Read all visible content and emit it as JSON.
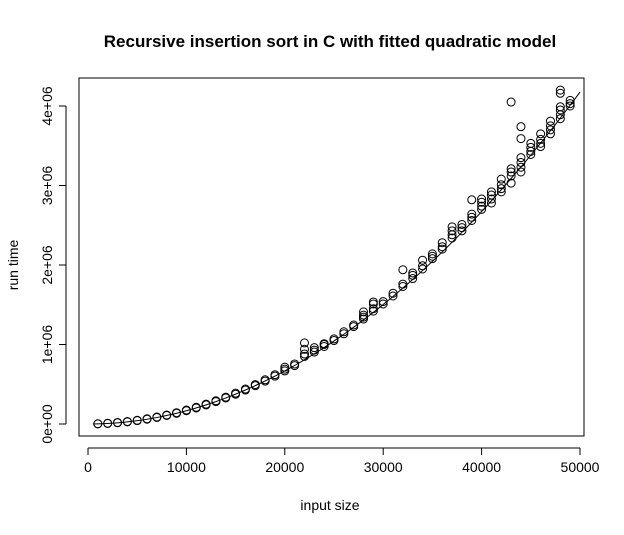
{
  "chart_data": {
    "type": "scatter",
    "title": "Recursive insertion sort in C with fitted quadratic model",
    "xlabel": "input size",
    "ylabel": "run time",
    "xlim": [
      0,
      50000
    ],
    "ylim": [
      0,
      4000000
    ],
    "x_ticks": [
      0,
      10000,
      20000,
      30000,
      40000,
      50000
    ],
    "x_tick_labels": [
      "0",
      "10000",
      "20000",
      "30000",
      "40000",
      "50000"
    ],
    "y_ticks": [
      0,
      1000000,
      2000000,
      3000000,
      4000000
    ],
    "y_tick_labels": [
      "0e+00",
      "1e+06",
      "2e+06",
      "3e+06",
      "4e+06"
    ],
    "grid": false,
    "legend": "none",
    "fit": {
      "type": "quadratic",
      "coef_x2": 0.00167,
      "x_range": [
        500,
        50000
      ]
    },
    "points": [
      {
        "x": 1000,
        "y": 1700
      },
      {
        "x": 1000,
        "y": 3000
      },
      {
        "x": 2000,
        "y": 7000
      },
      {
        "x": 2000,
        "y": 9000
      },
      {
        "x": 3000,
        "y": 15000
      },
      {
        "x": 3000,
        "y": 19000
      },
      {
        "x": 4000,
        "y": 27000
      },
      {
        "x": 4000,
        "y": 31000
      },
      {
        "x": 5000,
        "y": 42000
      },
      {
        "x": 5000,
        "y": 47000
      },
      {
        "x": 6000,
        "y": 60000
      },
      {
        "x": 6000,
        "y": 66000
      },
      {
        "x": 7000,
        "y": 82000
      },
      {
        "x": 7000,
        "y": 88000
      },
      {
        "x": 8000,
        "y": 107000
      },
      {
        "x": 8000,
        "y": 113000
      },
      {
        "x": 9000,
        "y": 135000
      },
      {
        "x": 9000,
        "y": 142000
      },
      {
        "x": 10000,
        "y": 167000
      },
      {
        "x": 10000,
        "y": 176000
      },
      {
        "x": 11000,
        "y": 202000
      },
      {
        "x": 11000,
        "y": 210000
      },
      {
        "x": 12000,
        "y": 240000
      },
      {
        "x": 12000,
        "y": 250000
      },
      {
        "x": 13000,
        "y": 282000
      },
      {
        "x": 13000,
        "y": 292000
      },
      {
        "x": 14000,
        "y": 327000
      },
      {
        "x": 14000,
        "y": 338000
      },
      {
        "x": 15000,
        "y": 375000
      },
      {
        "x": 15000,
        "y": 388000
      },
      {
        "x": 16000,
        "y": 427000
      },
      {
        "x": 16000,
        "y": 440000
      },
      {
        "x": 17000,
        "y": 482000
      },
      {
        "x": 17000,
        "y": 496000
      },
      {
        "x": 18000,
        "y": 540000
      },
      {
        "x": 18000,
        "y": 556000
      },
      {
        "x": 19000,
        "y": 602000
      },
      {
        "x": 19000,
        "y": 620000
      },
      {
        "x": 20000,
        "y": 668000
      },
      {
        "x": 20000,
        "y": 690000
      },
      {
        "x": 20000,
        "y": 715000
      },
      {
        "x": 21000,
        "y": 735000
      },
      {
        "x": 21000,
        "y": 755000
      },
      {
        "x": 22000,
        "y": 850000
      },
      {
        "x": 22000,
        "y": 880000
      },
      {
        "x": 22000,
        "y": 940000
      },
      {
        "x": 22000,
        "y": 1020000
      },
      {
        "x": 23000,
        "y": 905000
      },
      {
        "x": 23000,
        "y": 930000
      },
      {
        "x": 23000,
        "y": 960000
      },
      {
        "x": 24000,
        "y": 975000
      },
      {
        "x": 24000,
        "y": 1000000
      },
      {
        "x": 24000,
        "y": 1010000
      },
      {
        "x": 25000,
        "y": 1050000
      },
      {
        "x": 25000,
        "y": 1070000
      },
      {
        "x": 26000,
        "y": 1135000
      },
      {
        "x": 26000,
        "y": 1160000
      },
      {
        "x": 27000,
        "y": 1225000
      },
      {
        "x": 27000,
        "y": 1245000
      },
      {
        "x": 28000,
        "y": 1320000
      },
      {
        "x": 28000,
        "y": 1345000
      },
      {
        "x": 28000,
        "y": 1370000
      },
      {
        "x": 28000,
        "y": 1410000
      },
      {
        "x": 29000,
        "y": 1420000
      },
      {
        "x": 29000,
        "y": 1450000
      },
      {
        "x": 29000,
        "y": 1510000
      },
      {
        "x": 29000,
        "y": 1535000
      },
      {
        "x": 30000,
        "y": 1510000
      },
      {
        "x": 30000,
        "y": 1540000
      },
      {
        "x": 31000,
        "y": 1610000
      },
      {
        "x": 31000,
        "y": 1645000
      },
      {
        "x": 32000,
        "y": 1730000
      },
      {
        "x": 32000,
        "y": 1760000
      },
      {
        "x": 32000,
        "y": 1940000
      },
      {
        "x": 33000,
        "y": 1830000
      },
      {
        "x": 33000,
        "y": 1870000
      },
      {
        "x": 33000,
        "y": 1900000
      },
      {
        "x": 34000,
        "y": 1950000
      },
      {
        "x": 34000,
        "y": 1990000
      },
      {
        "x": 34000,
        "y": 2060000
      },
      {
        "x": 35000,
        "y": 2080000
      },
      {
        "x": 35000,
        "y": 2110000
      },
      {
        "x": 35000,
        "y": 2140000
      },
      {
        "x": 36000,
        "y": 2200000
      },
      {
        "x": 36000,
        "y": 2230000
      },
      {
        "x": 36000,
        "y": 2280000
      },
      {
        "x": 37000,
        "y": 2340000
      },
      {
        "x": 37000,
        "y": 2380000
      },
      {
        "x": 37000,
        "y": 2430000
      },
      {
        "x": 37000,
        "y": 2480000
      },
      {
        "x": 38000,
        "y": 2430000
      },
      {
        "x": 38000,
        "y": 2470000
      },
      {
        "x": 38000,
        "y": 2510000
      },
      {
        "x": 39000,
        "y": 2560000
      },
      {
        "x": 39000,
        "y": 2600000
      },
      {
        "x": 39000,
        "y": 2640000
      },
      {
        "x": 39000,
        "y": 2820000
      },
      {
        "x": 40000,
        "y": 2700000
      },
      {
        "x": 40000,
        "y": 2740000
      },
      {
        "x": 40000,
        "y": 2790000
      },
      {
        "x": 40000,
        "y": 2830000
      },
      {
        "x": 41000,
        "y": 2780000
      },
      {
        "x": 41000,
        "y": 2830000
      },
      {
        "x": 41000,
        "y": 2880000
      },
      {
        "x": 41000,
        "y": 2920000
      },
      {
        "x": 42000,
        "y": 2920000
      },
      {
        "x": 42000,
        "y": 2960000
      },
      {
        "x": 42000,
        "y": 3010000
      },
      {
        "x": 42000,
        "y": 3080000
      },
      {
        "x": 43000,
        "y": 3030000
      },
      {
        "x": 43000,
        "y": 3120000
      },
      {
        "x": 43000,
        "y": 3170000
      },
      {
        "x": 43000,
        "y": 3210000
      },
      {
        "x": 43000,
        "y": 4050000
      },
      {
        "x": 44000,
        "y": 3170000
      },
      {
        "x": 44000,
        "y": 3230000
      },
      {
        "x": 44000,
        "y": 3290000
      },
      {
        "x": 44000,
        "y": 3350000
      },
      {
        "x": 44000,
        "y": 3590000
      },
      {
        "x": 44000,
        "y": 3740000
      },
      {
        "x": 45000,
        "y": 3390000
      },
      {
        "x": 45000,
        "y": 3430000
      },
      {
        "x": 45000,
        "y": 3480000
      },
      {
        "x": 45000,
        "y": 3530000
      },
      {
        "x": 46000,
        "y": 3490000
      },
      {
        "x": 46000,
        "y": 3530000
      },
      {
        "x": 46000,
        "y": 3580000
      },
      {
        "x": 46000,
        "y": 3650000
      },
      {
        "x": 47000,
        "y": 3650000
      },
      {
        "x": 47000,
        "y": 3700000
      },
      {
        "x": 47000,
        "y": 3750000
      },
      {
        "x": 47000,
        "y": 3810000
      },
      {
        "x": 48000,
        "y": 3840000
      },
      {
        "x": 48000,
        "y": 3890000
      },
      {
        "x": 48000,
        "y": 3950000
      },
      {
        "x": 48000,
        "y": 3990000
      },
      {
        "x": 48000,
        "y": 4160000
      },
      {
        "x": 48000,
        "y": 4200000
      },
      {
        "x": 49000,
        "y": 4000000
      },
      {
        "x": 49000,
        "y": 4030000
      },
      {
        "x": 49000,
        "y": 4070000
      }
    ]
  }
}
